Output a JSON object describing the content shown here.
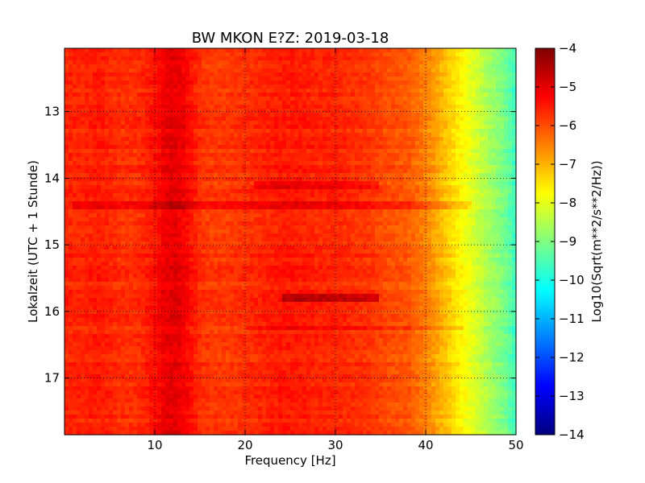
{
  "chart_data": {
    "type": "heatmap",
    "title": "BW MKON E?Z: 2019-03-18",
    "xlabel": "Frequency [Hz]",
    "ylabel": "Lokalzeit (UTC + 1 Stunde)",
    "xlim": [
      0,
      50
    ],
    "ylim": [
      17.85,
      12.05
    ],
    "y_inverted": true,
    "x_ticks": [
      10,
      20,
      30,
      40,
      50
    ],
    "x_tick_labels": [
      "10",
      "20",
      "30",
      "40",
      "50"
    ],
    "y_ticks": [
      13,
      14,
      15,
      16,
      17
    ],
    "y_tick_labels": [
      "13",
      "14",
      "15",
      "16",
      "17"
    ],
    "grid": true,
    "colorbar": {
      "label": "Log10(Sqrt(m**2/s**2/Hz))",
      "min": -14,
      "max": -4,
      "ticks": [
        -4,
        -5,
        -6,
        -7,
        -8,
        -9,
        -10,
        -11,
        -12,
        -13,
        -14
      ],
      "tick_labels": [
        "−4",
        "−5",
        "−6",
        "−7",
        "−8",
        "−9",
        "−10",
        "−11",
        "−12",
        "−13",
        "−14"
      ],
      "colormap": "jet"
    },
    "spectrum_profile": {
      "frequency_hz": [
        0,
        2,
        4,
        6,
        8,
        10,
        11,
        12,
        13,
        14,
        15,
        16,
        18,
        20,
        22,
        24,
        25,
        26,
        28,
        30,
        32,
        34,
        36,
        38,
        40,
        41,
        42,
        43,
        44,
        45,
        46,
        47,
        48,
        49,
        50
      ],
      "level": [
        -5.6,
        -5.6,
        -5.5,
        -5.7,
        -5.7,
        -5.4,
        -5.1,
        -5.0,
        -5.1,
        -5.4,
        -5.7,
        -5.8,
        -5.8,
        -5.7,
        -5.6,
        -5.5,
        -5.5,
        -5.5,
        -5.6,
        -5.6,
        -5.7,
        -5.8,
        -6.0,
        -6.1,
        -6.5,
        -6.8,
        -7.1,
        -7.4,
        -7.7,
        -8.0,
        -8.3,
        -8.6,
        -8.9,
        -9.2,
        -9.7
      ]
    },
    "events": [
      {
        "time": 14.1,
        "freq_range": [
          21,
          35
        ],
        "level_delta": 0.5
      },
      {
        "time": 14.4,
        "freq_range": [
          1,
          45
        ],
        "level_delta": 0.4
      },
      {
        "time": 15.8,
        "freq_range": [
          24,
          35
        ],
        "level_delta": 0.9
      },
      {
        "time": 16.25,
        "freq_range": [
          20,
          44
        ],
        "level_delta": 0.5
      }
    ]
  }
}
